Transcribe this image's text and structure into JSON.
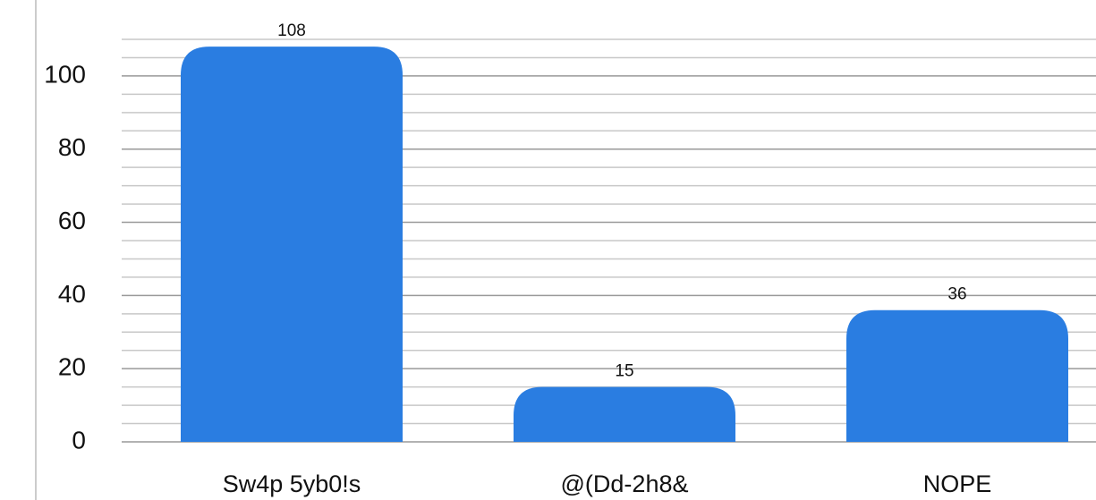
{
  "chart_data": {
    "type": "bar",
    "categories": [
      "Sw4p 5yb0!s",
      "@(Dd-2h8&",
      "NOPE"
    ],
    "values": [
      108,
      15,
      36
    ],
    "color": "#2a7de1",
    "ylim": [
      0,
      110
    ],
    "yticks": [
      0,
      20,
      40,
      60,
      80,
      100
    ],
    "minor_yticks": [
      5,
      10,
      15,
      25,
      30,
      35,
      45,
      50,
      55,
      65,
      70,
      75,
      85,
      90,
      95,
      105,
      110
    ],
    "grid": true
  }
}
